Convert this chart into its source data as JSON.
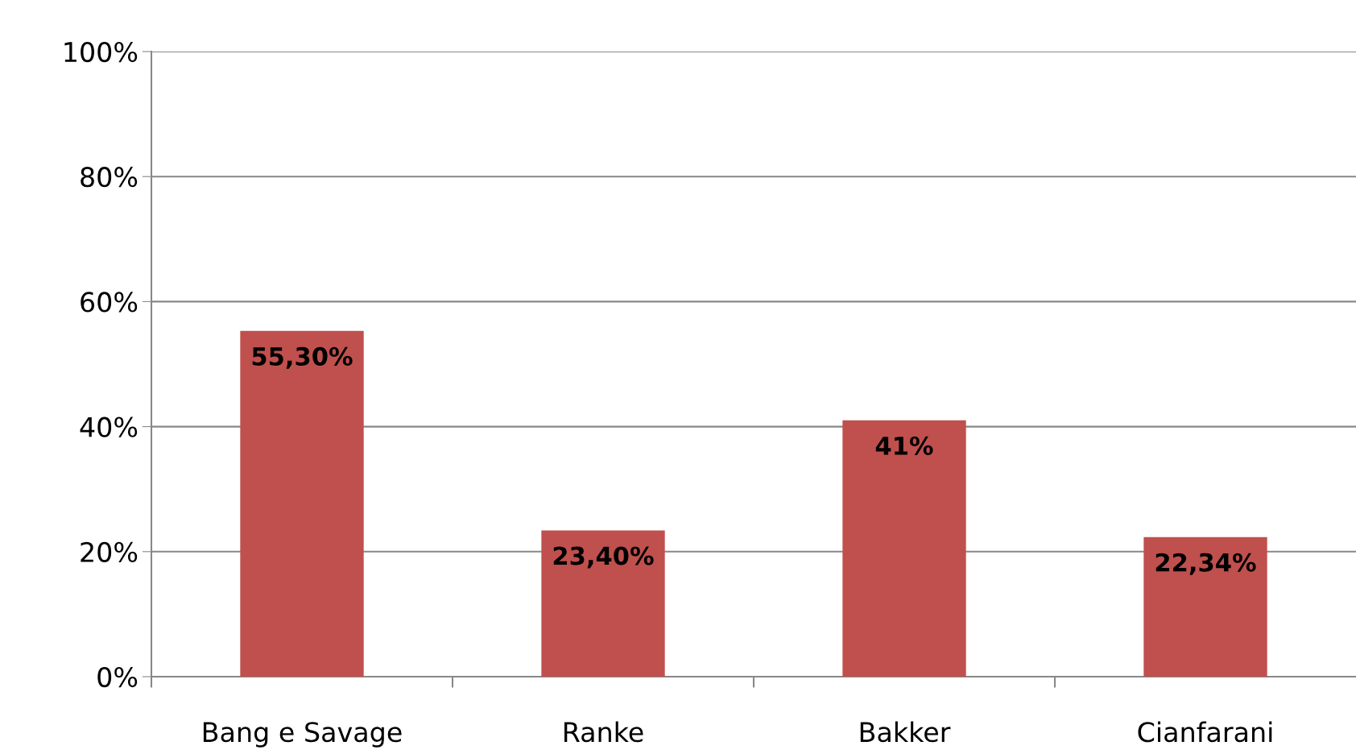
{
  "chart_data": {
    "type": "bar",
    "categories": [
      "Bang e Savage",
      "Ranke",
      "Bakker",
      "Cianfarani"
    ],
    "values": [
      55.3,
      23.4,
      41,
      22.34
    ],
    "color": "#c0504d",
    "value_labels": [
      "55,30%",
      "23,40%",
      "41%",
      "22,34%"
    ],
    "ylim": [
      0,
      100
    ],
    "yticks": [
      {
        "value": 0,
        "label": "0%"
      },
      {
        "value": 20,
        "label": "20%"
      },
      {
        "value": 40,
        "label": "40%"
      },
      {
        "value": 60,
        "label": "60%"
      },
      {
        "value": 80,
        "label": "80%"
      },
      {
        "value": 100,
        "label": "100%"
      }
    ],
    "grid": "y"
  }
}
